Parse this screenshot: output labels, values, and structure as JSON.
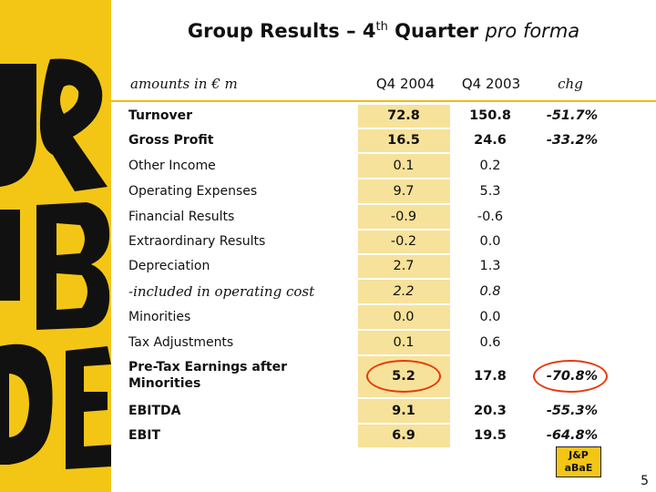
{
  "title": {
    "main": "Group Results – 4",
    "sup": "th",
    "rest": " Quarter ",
    "italic": "pro forma"
  },
  "header": {
    "units": "amounts in € m",
    "col1": "Q4 2004",
    "col2": "Q4 2003",
    "col3": "chg"
  },
  "rows": [
    {
      "label": "Turnover",
      "v1": "72.8",
      "v2": "150.8",
      "v3": "-51.7%",
      "style": "bold"
    },
    {
      "label": "Gross Profit",
      "v1": "16.5",
      "v2": "24.6",
      "v3": "-33.2%",
      "style": "bold"
    },
    {
      "label": "Other Income",
      "v1": "0.1",
      "v2": "0.2",
      "v3": "",
      "style": ""
    },
    {
      "label": "Operating Expenses",
      "v1": "9.7",
      "v2": "5.3",
      "v3": "",
      "style": ""
    },
    {
      "label": "Financial Results",
      "v1": "-0.9",
      "v2": "-0.6",
      "v3": "",
      "style": ""
    },
    {
      "label": "Extraordinary Results",
      "v1": "-0.2",
      "v2": "0.0",
      "v3": "",
      "style": ""
    },
    {
      "label": "Depreciation",
      "v1": "2.7",
      "v2": "1.3",
      "v3": "",
      "style": ""
    },
    {
      "label": "-included in operating cost",
      "v1": "2.2",
      "v2": "0.8",
      "v3": "",
      "style": "ital"
    },
    {
      "label": "Minorities",
      "v1": "0.0",
      "v2": "0.0",
      "v3": "",
      "style": ""
    },
    {
      "label": "Tax Adjustments",
      "v1": "0.1",
      "v2": "0.6",
      "v3": "",
      "style": ""
    },
    {
      "label": "Pre-Tax Earnings after Minorities",
      "label_line1": "Pre-Tax Earnings after",
      "label_line2": "Minorities",
      "v1": "5.2",
      "v2": "17.8",
      "v3": "-70.8%",
      "style": "bold"
    },
    {
      "label": "EBITDA",
      "v1": "9.1",
      "v2": "20.3",
      "v3": "-55.3%",
      "style": "bold"
    },
    {
      "label": "EBIT",
      "v1": "6.9",
      "v2": "19.5",
      "v3": "-64.8%",
      "style": "bold"
    }
  ],
  "logo": {
    "line1": "J&P",
    "line2": "aBaE"
  },
  "page_number": "5",
  "colors": {
    "brand_yellow": "#f3c615",
    "highlight_circle": "#e53a0a",
    "cell_shade": "#f6e29a"
  }
}
